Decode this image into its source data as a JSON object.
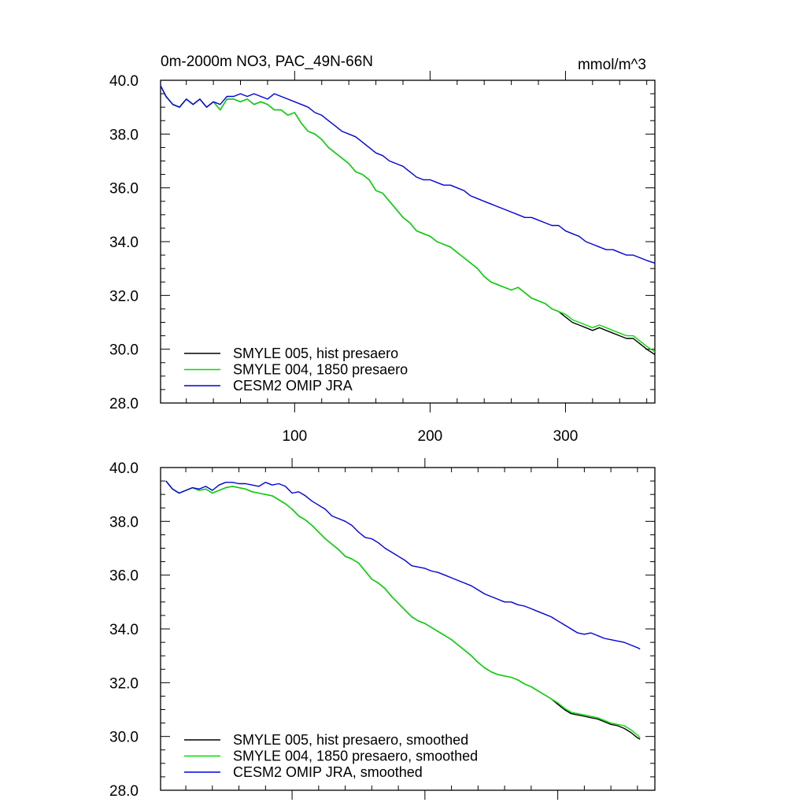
{
  "chart_data": [
    {
      "type": "line",
      "title": "0m-2000m NO3, PAC_49N-66N",
      "units": "mmol/m^3",
      "xlabel": "",
      "ylabel": "",
      "xlim": [
        1,
        366
      ],
      "ylim": [
        28,
        40
      ],
      "xticks": [
        100,
        200,
        300
      ],
      "xtick_labels": [
        "100",
        "200",
        "300"
      ],
      "yticks": [
        28,
        30,
        32,
        34,
        36,
        38,
        40
      ],
      "ytick_labels": [
        "28.0",
        "30.0",
        "32.0",
        "34.0",
        "36.0",
        "38.0",
        "40.0"
      ],
      "grid": false,
      "legend_position": "bottom-left",
      "series": [
        {
          "name": "SMYLE 005, hist presaero",
          "color": "#000000",
          "x": [
            1,
            5,
            10,
            15,
            20,
            25,
            30,
            35,
            40,
            45,
            50,
            55,
            60,
            65,
            70,
            75,
            80,
            85,
            90,
            95,
            100,
            105,
            110,
            115,
            120,
            125,
            130,
            135,
            140,
            145,
            150,
            155,
            160,
            165,
            170,
            175,
            180,
            185,
            190,
            195,
            200,
            205,
            210,
            215,
            220,
            225,
            230,
            235,
            240,
            245,
            250,
            255,
            260,
            265,
            270,
            275,
            280,
            285,
            290,
            295,
            300,
            305,
            310,
            315,
            320,
            325,
            330,
            335,
            340,
            345,
            350,
            355,
            360,
            366
          ],
          "y": [
            39.8,
            39.4,
            39.1,
            39.0,
            39.3,
            39.1,
            39.3,
            39.0,
            39.2,
            38.9,
            39.3,
            39.3,
            39.2,
            39.3,
            39.1,
            39.2,
            39.1,
            38.9,
            38.9,
            38.7,
            38.8,
            38.4,
            38.1,
            38.0,
            37.8,
            37.5,
            37.3,
            37.1,
            36.9,
            36.6,
            36.5,
            36.3,
            35.9,
            35.8,
            35.5,
            35.2,
            34.9,
            34.7,
            34.4,
            34.3,
            34.2,
            34.0,
            33.9,
            33.8,
            33.6,
            33.4,
            33.2,
            33.0,
            32.7,
            32.5,
            32.4,
            32.3,
            32.2,
            32.3,
            32.1,
            31.9,
            31.8,
            31.7,
            31.5,
            31.4,
            31.2,
            31.0,
            30.9,
            30.8,
            30.7,
            30.8,
            30.7,
            30.6,
            30.5,
            30.4,
            30.4,
            30.2,
            30.0,
            29.8
          ]
        },
        {
          "name": "SMYLE 004, 1850 presaero",
          "color": "#00dd00",
          "x": [
            1,
            5,
            10,
            15,
            20,
            25,
            30,
            35,
            40,
            45,
            50,
            55,
            60,
            65,
            70,
            75,
            80,
            85,
            90,
            95,
            100,
            105,
            110,
            115,
            120,
            125,
            130,
            135,
            140,
            145,
            150,
            155,
            160,
            165,
            170,
            175,
            180,
            185,
            190,
            195,
            200,
            205,
            210,
            215,
            220,
            225,
            230,
            235,
            240,
            245,
            250,
            255,
            260,
            265,
            270,
            275,
            280,
            285,
            290,
            295,
            300,
            305,
            310,
            315,
            320,
            325,
            330,
            335,
            340,
            345,
            350,
            355,
            360,
            366
          ],
          "y": [
            39.8,
            39.4,
            39.1,
            39.0,
            39.3,
            39.1,
            39.3,
            39.0,
            39.2,
            38.9,
            39.3,
            39.3,
            39.2,
            39.3,
            39.1,
            39.2,
            39.1,
            38.9,
            38.9,
            38.7,
            38.8,
            38.4,
            38.1,
            38.0,
            37.8,
            37.5,
            37.3,
            37.1,
            36.9,
            36.6,
            36.5,
            36.3,
            35.9,
            35.8,
            35.5,
            35.2,
            34.9,
            34.7,
            34.4,
            34.3,
            34.2,
            34.0,
            33.9,
            33.8,
            33.6,
            33.4,
            33.2,
            33.0,
            32.7,
            32.5,
            32.4,
            32.3,
            32.2,
            32.3,
            32.1,
            31.9,
            31.8,
            31.7,
            31.5,
            31.4,
            31.3,
            31.1,
            31.0,
            30.9,
            30.8,
            30.9,
            30.8,
            30.7,
            30.6,
            30.5,
            30.5,
            30.3,
            30.1,
            29.9
          ]
        },
        {
          "name": "CESM2 OMIP JRA",
          "color": "#0000dd",
          "x": [
            1,
            5,
            10,
            15,
            20,
            25,
            30,
            35,
            40,
            45,
            50,
            55,
            60,
            65,
            70,
            75,
            80,
            85,
            90,
            95,
            100,
            105,
            110,
            115,
            120,
            125,
            130,
            135,
            140,
            145,
            150,
            155,
            160,
            165,
            170,
            175,
            180,
            185,
            190,
            195,
            200,
            205,
            210,
            215,
            220,
            225,
            230,
            235,
            240,
            245,
            250,
            255,
            260,
            265,
            270,
            275,
            280,
            285,
            290,
            295,
            300,
            305,
            310,
            315,
            320,
            325,
            330,
            335,
            340,
            345,
            350,
            355,
            360,
            366
          ],
          "y": [
            39.8,
            39.4,
            39.1,
            39.0,
            39.3,
            39.1,
            39.3,
            39.0,
            39.2,
            39.1,
            39.4,
            39.4,
            39.5,
            39.4,
            39.5,
            39.4,
            39.3,
            39.5,
            39.4,
            39.3,
            39.2,
            39.1,
            39.0,
            38.8,
            38.7,
            38.5,
            38.3,
            38.1,
            38.0,
            37.9,
            37.7,
            37.5,
            37.3,
            37.2,
            37.0,
            36.9,
            36.8,
            36.6,
            36.4,
            36.3,
            36.3,
            36.2,
            36.1,
            36.1,
            36.0,
            35.9,
            35.7,
            35.6,
            35.5,
            35.4,
            35.3,
            35.2,
            35.1,
            35.0,
            34.9,
            34.9,
            34.8,
            34.7,
            34.6,
            34.6,
            34.4,
            34.3,
            34.2,
            34.0,
            33.9,
            33.8,
            33.7,
            33.7,
            33.6,
            33.5,
            33.5,
            33.4,
            33.3,
            33.2
          ]
        }
      ]
    },
    {
      "type": "line",
      "title": "",
      "xlabel": "",
      "ylabel": "",
      "xlim": [
        1,
        366
      ],
      "ylim": [
        28,
        40
      ],
      "xticks": [
        100,
        200,
        300
      ],
      "xtick_labels": [],
      "yticks": [
        28,
        30,
        32,
        34,
        36,
        38,
        40
      ],
      "ytick_labels": [
        "28.0",
        "30.0",
        "32.0",
        "34.0",
        "36.0",
        "38.0",
        "40.0"
      ],
      "grid": false,
      "legend_position": "bottom-left",
      "series": [
        {
          "name": "SMYLE 005, hist presaero, smoothed",
          "color": "#000000",
          "x": [
            5,
            10,
            15,
            20,
            25,
            30,
            35,
            40,
            45,
            50,
            55,
            60,
            65,
            70,
            75,
            80,
            85,
            90,
            95,
            100,
            105,
            110,
            115,
            120,
            125,
            130,
            135,
            140,
            145,
            150,
            155,
            160,
            165,
            170,
            175,
            180,
            185,
            190,
            195,
            200,
            205,
            210,
            215,
            220,
            225,
            230,
            235,
            240,
            245,
            250,
            255,
            260,
            265,
            270,
            275,
            280,
            285,
            290,
            295,
            300,
            305,
            310,
            315,
            320,
            325,
            330,
            335,
            340,
            345,
            350,
            355,
            360,
            362
          ],
          "y": [
            39.5,
            39.2,
            39.05,
            39.15,
            39.25,
            39.15,
            39.2,
            39.05,
            39.15,
            39.25,
            39.3,
            39.25,
            39.2,
            39.1,
            39.05,
            39.0,
            38.95,
            38.8,
            38.65,
            38.45,
            38.2,
            38.05,
            37.85,
            37.6,
            37.35,
            37.15,
            36.95,
            36.7,
            36.6,
            36.45,
            36.15,
            35.85,
            35.7,
            35.5,
            35.2,
            34.95,
            34.7,
            34.45,
            34.3,
            34.2,
            34.05,
            33.9,
            33.75,
            33.6,
            33.4,
            33.2,
            33.0,
            32.75,
            32.55,
            32.4,
            32.3,
            32.25,
            32.2,
            32.1,
            31.95,
            31.85,
            31.7,
            31.55,
            31.4,
            31.2,
            31.0,
            30.85,
            30.8,
            30.75,
            30.7,
            30.65,
            30.55,
            30.45,
            30.4,
            30.3,
            30.15,
            29.95,
            29.9
          ]
        },
        {
          "name": "SMYLE 004, 1850 presaero, smoothed",
          "color": "#00dd00",
          "x": [
            5,
            10,
            15,
            20,
            25,
            30,
            35,
            40,
            45,
            50,
            55,
            60,
            65,
            70,
            75,
            80,
            85,
            90,
            95,
            100,
            105,
            110,
            115,
            120,
            125,
            130,
            135,
            140,
            145,
            150,
            155,
            160,
            165,
            170,
            175,
            180,
            185,
            190,
            195,
            200,
            205,
            210,
            215,
            220,
            225,
            230,
            235,
            240,
            245,
            250,
            255,
            260,
            265,
            270,
            275,
            280,
            285,
            290,
            295,
            300,
            305,
            310,
            315,
            320,
            325,
            330,
            335,
            340,
            345,
            350,
            355,
            360,
            362
          ],
          "y": [
            39.5,
            39.2,
            39.05,
            39.15,
            39.25,
            39.15,
            39.2,
            39.05,
            39.15,
            39.25,
            39.3,
            39.25,
            39.2,
            39.1,
            39.05,
            39.0,
            38.95,
            38.8,
            38.65,
            38.45,
            38.2,
            38.05,
            37.85,
            37.6,
            37.35,
            37.15,
            36.95,
            36.7,
            36.6,
            36.45,
            36.15,
            35.85,
            35.7,
            35.5,
            35.2,
            34.95,
            34.7,
            34.45,
            34.3,
            34.2,
            34.05,
            33.9,
            33.75,
            33.6,
            33.4,
            33.2,
            33.0,
            32.75,
            32.55,
            32.4,
            32.3,
            32.25,
            32.2,
            32.1,
            31.95,
            31.85,
            31.7,
            31.55,
            31.4,
            31.25,
            31.05,
            30.9,
            30.85,
            30.8,
            30.75,
            30.7,
            30.6,
            30.5,
            30.45,
            30.4,
            30.25,
            30.05,
            29.95
          ]
        },
        {
          "name": "CESM2 OMIP JRA, smoothed",
          "color": "#0000dd",
          "x": [
            5,
            10,
            15,
            20,
            25,
            30,
            35,
            40,
            45,
            50,
            55,
            60,
            65,
            70,
            75,
            80,
            85,
            90,
            95,
            100,
            105,
            110,
            115,
            120,
            125,
            130,
            135,
            140,
            145,
            150,
            155,
            160,
            165,
            170,
            175,
            180,
            185,
            190,
            195,
            200,
            205,
            210,
            215,
            220,
            225,
            230,
            235,
            240,
            245,
            250,
            255,
            260,
            265,
            270,
            275,
            280,
            285,
            290,
            295,
            300,
            305,
            310,
            315,
            320,
            325,
            330,
            335,
            340,
            345,
            350,
            355,
            360,
            362
          ],
          "y": [
            39.5,
            39.2,
            39.05,
            39.15,
            39.25,
            39.2,
            39.3,
            39.15,
            39.35,
            39.45,
            39.45,
            39.4,
            39.4,
            39.35,
            39.3,
            39.45,
            39.35,
            39.4,
            39.3,
            39.05,
            39.1,
            38.95,
            38.75,
            38.6,
            38.45,
            38.2,
            38.1,
            38.0,
            37.85,
            37.6,
            37.4,
            37.35,
            37.2,
            37.0,
            36.85,
            36.7,
            36.55,
            36.35,
            36.3,
            36.25,
            36.15,
            36.1,
            36.0,
            35.9,
            35.8,
            35.7,
            35.6,
            35.45,
            35.3,
            35.2,
            35.1,
            35.0,
            35.0,
            34.9,
            34.85,
            34.75,
            34.65,
            34.55,
            34.45,
            34.3,
            34.15,
            34.0,
            33.85,
            33.8,
            33.85,
            33.75,
            33.65,
            33.6,
            33.55,
            33.5,
            33.4,
            33.3,
            33.25
          ]
        }
      ]
    }
  ]
}
